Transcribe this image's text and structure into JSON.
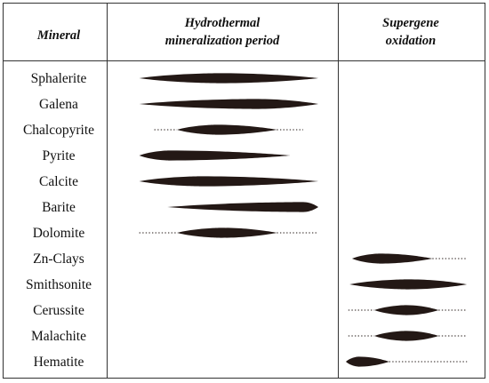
{
  "headers": {
    "mineral": "Mineral",
    "hydrothermal": [
      "Hydrothermal",
      "mineralization period"
    ],
    "supergene": [
      "Supergene",
      "oxidation"
    ]
  },
  "minerals": [
    {
      "name": "Sphalerite",
      "stage": "hydrothermal",
      "dotted_from": null,
      "solid": [
        0.05,
        1.0
      ],
      "dotted_to": null,
      "peak": 0.45
    },
    {
      "name": "Galena",
      "stage": "hydrothermal",
      "dotted_from": null,
      "solid": [
        0.05,
        1.0
      ],
      "dotted_to": null,
      "peak": 0.65
    },
    {
      "name": "Chalcopyrite",
      "stage": "hydrothermal",
      "dotted_from": 0.13,
      "solid": [
        0.25,
        0.78
      ],
      "dotted_to": 0.92,
      "peak": 0.4
    },
    {
      "name": "Pyrite",
      "stage": "hydrothermal",
      "dotted_from": null,
      "solid": [
        0.05,
        0.85
      ],
      "dotted_to": null,
      "peak": 0.2
    },
    {
      "name": "Calcite",
      "stage": "hydrothermal",
      "dotted_from": null,
      "solid": [
        0.05,
        1.0
      ],
      "dotted_to": null,
      "peak": 0.35
    },
    {
      "name": "Barite",
      "stage": "hydrothermal",
      "dotted_from": null,
      "solid": [
        0.2,
        1.0
      ],
      "dotted_to": null,
      "peak": 0.9
    },
    {
      "name": "Dolomite",
      "stage": "hydrothermal",
      "dotted_from": 0.05,
      "solid": [
        0.25,
        0.78
      ],
      "dotted_to": 1.0,
      "peak": 0.45
    },
    {
      "name": "Zn-Clays",
      "stage": "supergene",
      "dotted_from": null,
      "solid": [
        0.05,
        0.7
      ],
      "dotted_to": 0.98,
      "peak": 0.35
    },
    {
      "name": "Smithsonite",
      "stage": "supergene",
      "dotted_from": null,
      "solid": [
        0.03,
        0.98
      ],
      "dotted_to": null,
      "peak": 0.5
    },
    {
      "name": "Cerussite",
      "stage": "supergene",
      "dotted_from": 0.02,
      "solid": [
        0.23,
        0.75
      ],
      "dotted_to": 0.98,
      "peak": 0.5
    },
    {
      "name": "Malachite",
      "stage": "supergene",
      "dotted_from": 0.02,
      "solid": [
        0.23,
        0.75
      ],
      "dotted_to": 0.98,
      "peak": 0.5
    },
    {
      "name": "Hematite",
      "stage": "supergene",
      "dotted_from": null,
      "solid": [
        0.0,
        0.35
      ],
      "dotted_to": 0.98,
      "peak": 0.3
    }
  ],
  "colors": {
    "bar": "#231815",
    "frame": "#333333"
  }
}
